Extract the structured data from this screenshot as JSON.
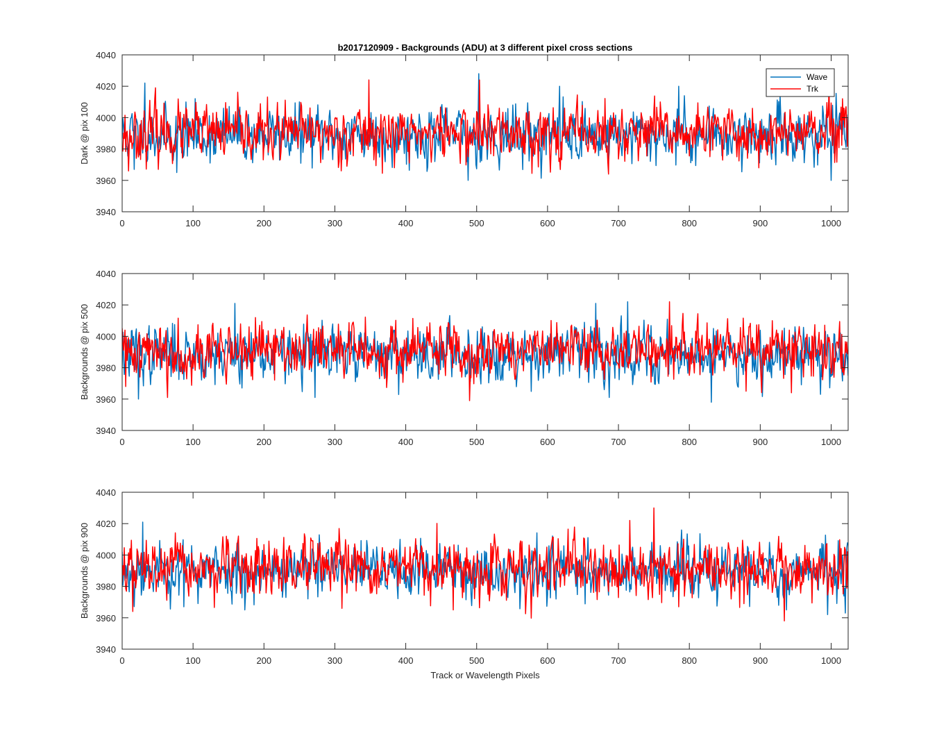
{
  "figure": {
    "title": "b2017120909 - Backgrounds (ADU) at 3 different pixel cross sections",
    "xlabel": "Track or Wavelength Pixels"
  },
  "chart_data": [
    {
      "type": "line",
      "title": "b2017120909 - Backgrounds (ADU) at 3 different pixel cross sections",
      "xlabel": "",
      "ylabel": "Dark @ pix 100",
      "xlim": [
        0,
        1024
      ],
      "ylim": [
        3940,
        4040
      ],
      "xticks": [
        0,
        100,
        200,
        300,
        400,
        500,
        600,
        700,
        800,
        900,
        1000
      ],
      "yticks": [
        3940,
        3960,
        3980,
        4000,
        4020,
        4040
      ],
      "legend": {
        "location": "top-right",
        "entries": [
          "Wave",
          "Trk"
        ]
      },
      "series": [
        {
          "name": "Wave",
          "color": "#0072BD",
          "mean": 3989,
          "amp": 8.5,
          "seed": 11,
          "spikes": [
            [
              32,
              4022
            ],
            [
              503,
              4028
            ],
            [
              488,
              3960
            ],
            [
              1000,
              3960
            ],
            [
              17,
              3967
            ],
            [
              77,
              3965
            ],
            [
              617,
              4020
            ],
            [
              785,
              4020
            ]
          ]
        },
        {
          "name": "Trk",
          "color": "#FF0000",
          "mean": 3990,
          "amp": 8.5,
          "seed": 23,
          "spikes": [
            [
              47,
              4019
            ],
            [
              348,
              4024
            ],
            [
              504,
              4024
            ],
            [
              686,
              3964
            ],
            [
              1016,
              4012
            ],
            [
              9,
              3966
            ],
            [
              898,
              3968
            ]
          ]
        }
      ]
    },
    {
      "type": "line",
      "title": "",
      "xlabel": "",
      "ylabel": "Backgrounds @ pix 500",
      "xlim": [
        0,
        1024
      ],
      "ylim": [
        3940,
        4040
      ],
      "xticks": [
        0,
        100,
        200,
        300,
        400,
        500,
        600,
        700,
        800,
        900,
        1000
      ],
      "yticks": [
        3940,
        3960,
        3980,
        4000,
        4020,
        4040
      ],
      "series": [
        {
          "name": "Wave",
          "color": "#0072BD",
          "mean": 3989,
          "amp": 8.5,
          "seed": 37,
          "spikes": [
            [
              159,
              4021
            ],
            [
              668,
              4021
            ],
            [
              713,
              4022
            ],
            [
              23,
              3960
            ],
            [
              831,
              3958
            ],
            [
              272,
              3961
            ],
            [
              985,
              3963
            ]
          ]
        },
        {
          "name": "Trk",
          "color": "#FF0000",
          "mean": 3991,
          "amp": 8.5,
          "seed": 41,
          "spikes": [
            [
              772,
              4022
            ],
            [
              490,
              3959
            ],
            [
              64,
              3961
            ],
            [
              880,
              3965
            ],
            [
              944,
              3964
            ],
            [
              5,
              3968
            ]
          ]
        }
      ]
    },
    {
      "type": "line",
      "title": "",
      "xlabel": "Track or Wavelength Pixels",
      "ylabel": "Backgrounds @ pix 900",
      "xlim": [
        0,
        1024
      ],
      "ylim": [
        3940,
        4040
      ],
      "xticks": [
        0,
        100,
        200,
        300,
        400,
        500,
        600,
        700,
        800,
        900,
        1000
      ],
      "yticks": [
        3940,
        3960,
        3980,
        4000,
        4020,
        4040
      ],
      "series": [
        {
          "name": "Wave",
          "color": "#0072BD",
          "mean": 3990,
          "amp": 8.5,
          "seed": 53,
          "spikes": [
            [
              29,
              4021
            ],
            [
              173,
              3965
            ],
            [
              937,
              3965
            ],
            [
              995,
              3962
            ],
            [
              87,
              3967
            ]
          ]
        },
        {
          "name": "Trk",
          "color": "#FF0000",
          "mean": 3991,
          "amp": 8.5,
          "seed": 67,
          "spikes": [
            [
              750,
              4030
            ],
            [
              716,
              4022
            ],
            [
              934,
              3958
            ],
            [
              15,
              3964
            ],
            [
              310,
              3966
            ],
            [
              467,
              3965
            ],
            [
              785,
              3967
            ],
            [
              877,
              3969
            ]
          ]
        }
      ]
    }
  ]
}
